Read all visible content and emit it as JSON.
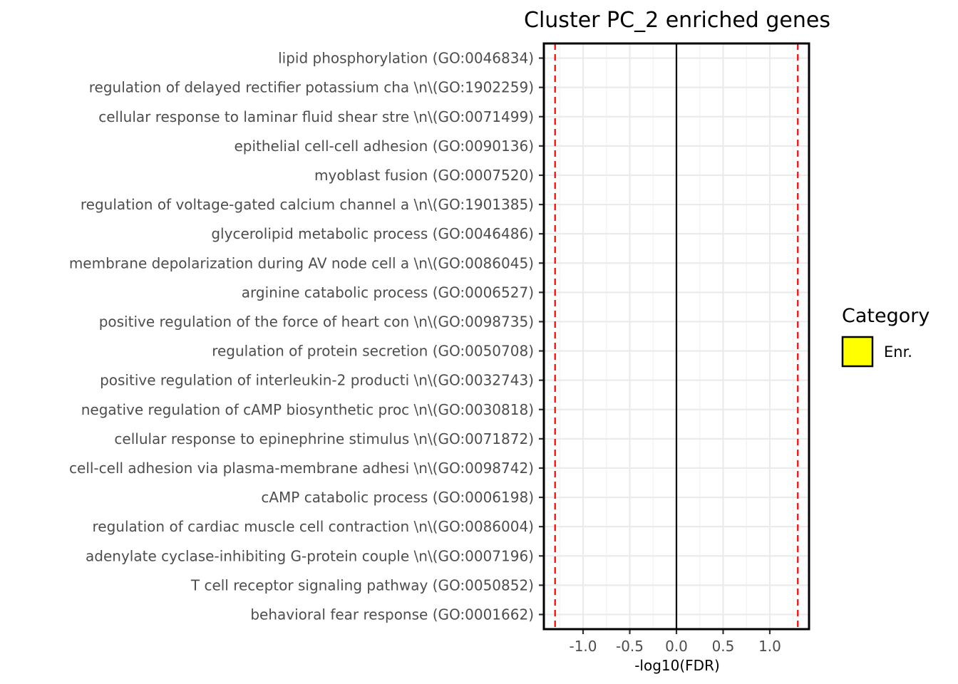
{
  "chart_data": {
    "type": "bar",
    "title": "Cluster PC_2 enriched genes",
    "xlabel": "-log10(FDR)",
    "ylabel": "",
    "orientation": "horizontal",
    "categories": [
      "lipid phosphorylation (GO:0046834)",
      "regulation of delayed rectifier potassium cha \\n\\(GO:1902259)",
      "cellular response to laminar fluid shear stre \\n\\(GO:0071499)",
      "epithelial cell-cell adhesion (GO:0090136)",
      "myoblast fusion (GO:0007520)",
      "regulation of voltage-gated calcium channel a \\n\\(GO:1901385)",
      "glycerolipid metabolic process (GO:0046486)",
      "membrane depolarization during AV node cell a \\n\\(GO:0086045)",
      "arginine catabolic process (GO:0006527)",
      "positive regulation of the force of heart con \\n\\(GO:0098735)",
      "regulation of protein secretion (GO:0050708)",
      "positive regulation of interleukin-2 producti \\n\\(GO:0032743)",
      "negative regulation of cAMP biosynthetic proc \\n\\(GO:0030818)",
      "cellular response to epinephrine stimulus  \\n\\(GO:0071872)",
      "cell-cell adhesion via plasma-membrane adhesi \\n\\(GO:0098742)",
      "cAMP catabolic process (GO:0006198)",
      "regulation of cardiac muscle cell contraction \\n\\(GO:0086004)",
      "adenylate cyclase-inhibiting G-protein couple \\n\\(GO:0007196)",
      "T cell receptor signaling pathway (GO:0050852)",
      "behavioral fear response (GO:0001662)"
    ],
    "series": [
      {
        "name": "Enr.",
        "color": "#ffff00",
        "values": [
          0,
          0,
          0,
          0,
          0,
          0,
          0,
          0,
          0,
          0,
          0,
          0,
          0,
          0,
          0,
          0,
          0,
          0,
          0,
          0
        ]
      }
    ],
    "xlim": [
      -1.42,
      1.42
    ],
    "xticks": [
      -1.0,
      -0.5,
      0.0,
      0.5,
      1.0
    ],
    "xtick_labels": [
      "-1.0",
      "-0.5",
      "0.0",
      "0.5",
      "1.0"
    ],
    "reference_lines": [
      {
        "x": -1.3,
        "style": "dashed",
        "color": "#ff0000"
      },
      {
        "x": 1.3,
        "style": "dashed",
        "color": "#ff0000"
      },
      {
        "x": 0,
        "style": "solid",
        "color": "#000000"
      }
    ],
    "grid": true,
    "legend": {
      "title": "Category",
      "position": "right",
      "entries": [
        {
          "label": "Enr.",
          "color": "#ffff00"
        }
      ]
    }
  }
}
